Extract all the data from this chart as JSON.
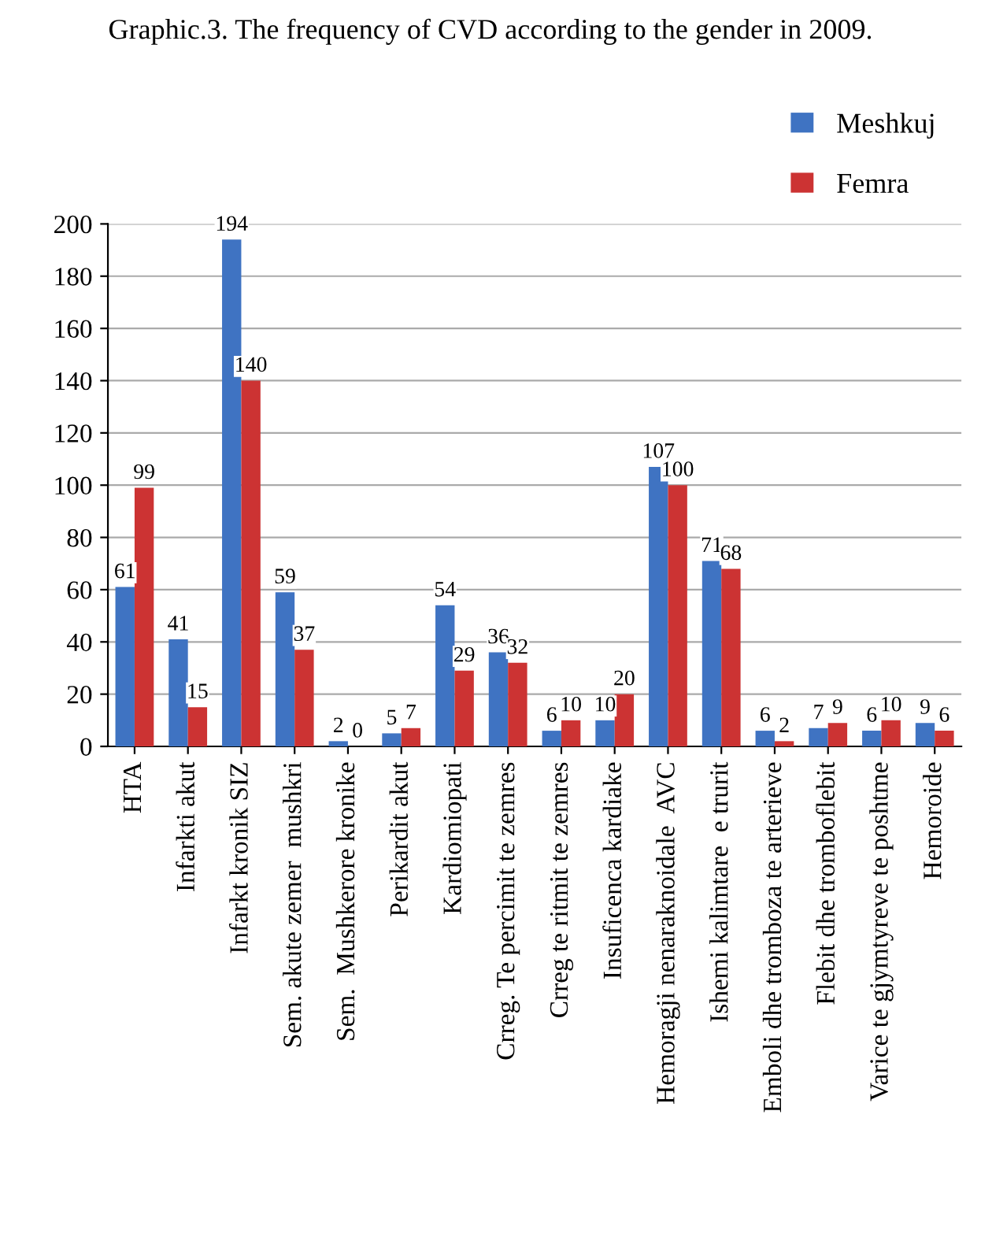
{
  "chart_data": {
    "type": "bar",
    "title": "Graphic.3. The frequency of CVD according to the gender in 2009.",
    "categories": [
      "HTA",
      "Infarkti akut",
      "Infarkt kronik SIZ",
      "Sem. akute zemer  mushkri",
      "Sem.  Mushkerore kronike",
      "Perikardit akut",
      "Kardiomiopati",
      "Crreg. Te percimit te zemres",
      "Crreg te ritmit te zemres",
      "Insuficenca kardiake",
      "Hemoragji nenaraknoidale  AVC",
      "Ishemi kalimtare  e trurit",
      "Emboli dhe tromboza te arterieve",
      "Flebit dhe tromboflebit",
      "Varice te gjymtyreve te poshtme",
      "Hemoroide"
    ],
    "series": [
      {
        "name": "Meshkuj",
        "color": "#3f73c2",
        "values": [
          61,
          41,
          194,
          59,
          2,
          5,
          54,
          36,
          6,
          10,
          107,
          71,
          6,
          7,
          6,
          9
        ]
      },
      {
        "name": "Femra",
        "color": "#cc3333",
        "values": [
          99,
          15,
          140,
          37,
          0,
          7,
          29,
          32,
          10,
          20,
          100,
          68,
          2,
          9,
          10,
          6
        ]
      }
    ],
    "ylim": [
      0,
      200
    ],
    "yticks": [
      0,
      20,
      40,
      60,
      80,
      100,
      120,
      140,
      160,
      180,
      200
    ],
    "grid": "y",
    "legend": "top right",
    "data_labels": true
  }
}
